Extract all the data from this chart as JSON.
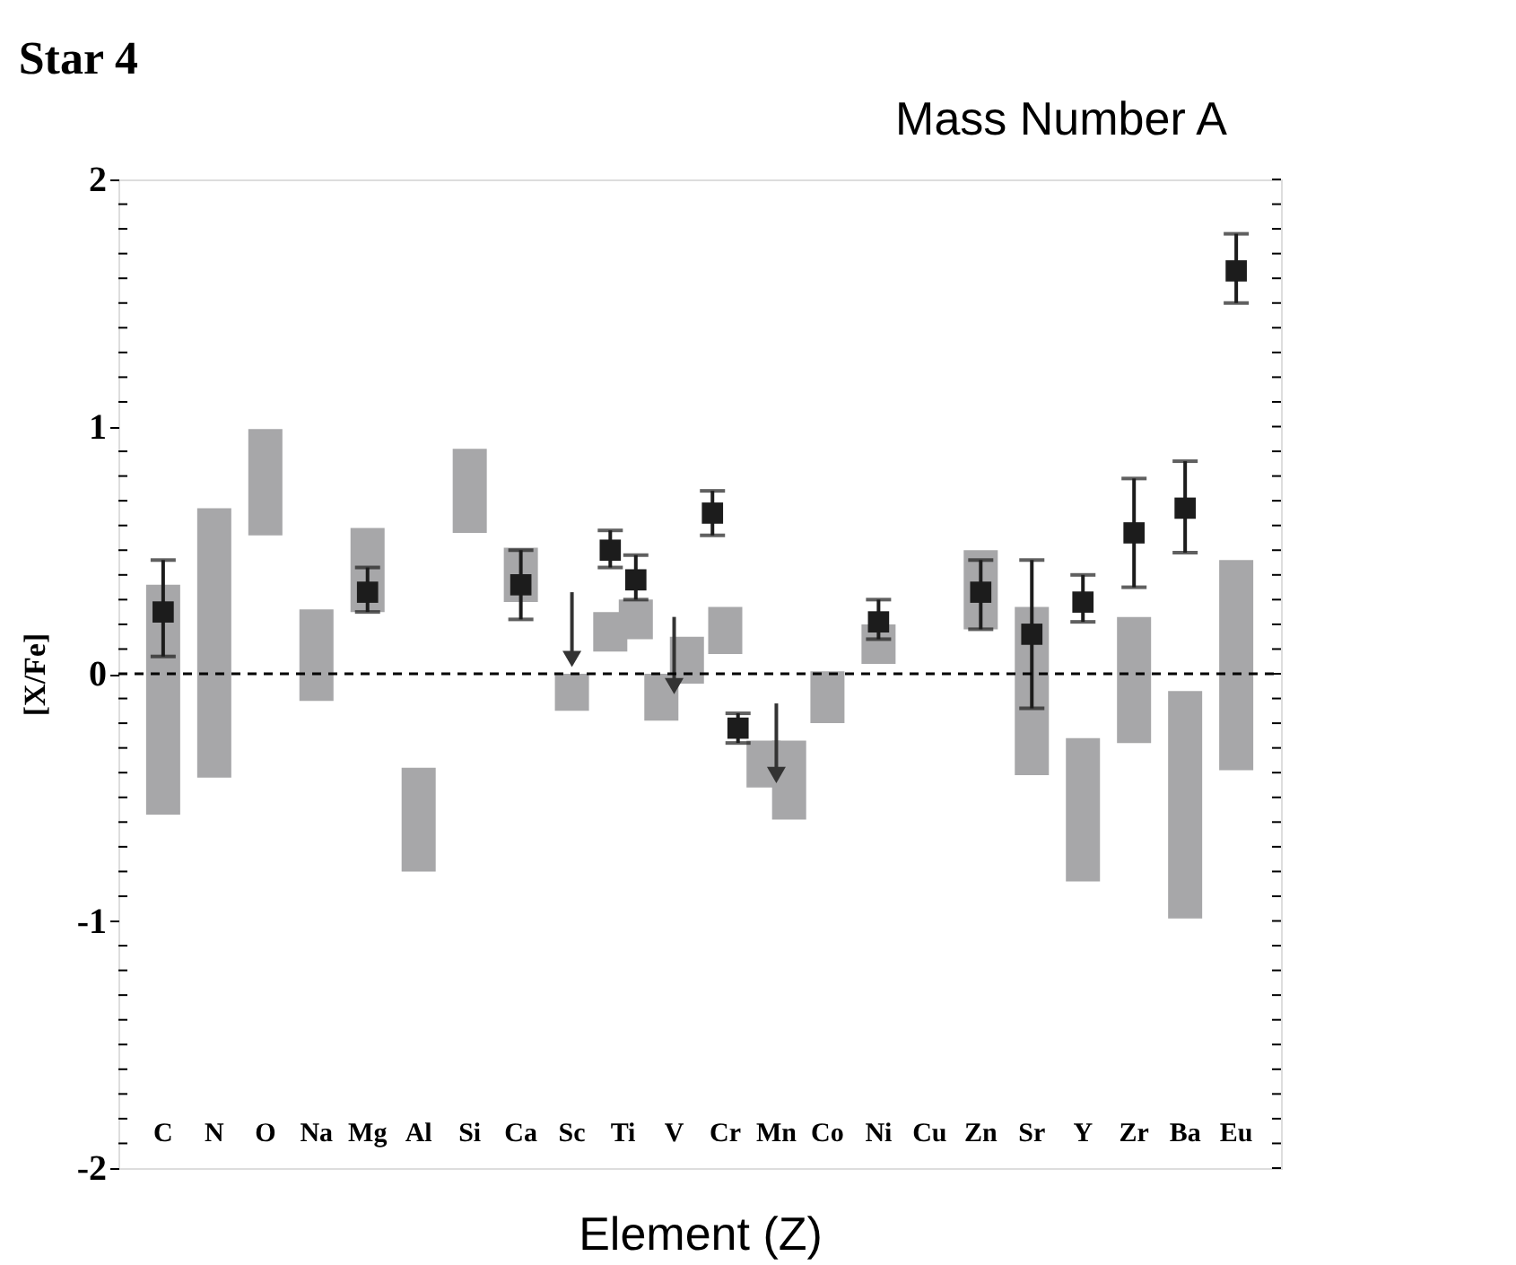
{
  "chart_data": {
    "type": "bar",
    "title": "Star 4",
    "xlabel": "Element (Z)",
    "ylabel": "[X/Fe]",
    "annotations": [
      "Mass Number A"
    ],
    "categories": [
      "C",
      "N",
      "O",
      "Na",
      "Mg",
      "Al",
      "Si",
      "Ca",
      "Sc",
      "Ti",
      "V",
      "Cr",
      "Mn",
      "Co",
      "Ni",
      "Cu",
      "Zn",
      "Sr",
      "Y",
      "Zr",
      "Ba",
      "Eu"
    ],
    "series": [
      {
        "color": "#a7a7a9",
        "x": [
          "C",
          "N",
          "O",
          "Na",
          "Mg",
          "Al",
          "Si",
          "Ca",
          "Sc",
          "Ti",
          "Ti",
          "V",
          "V",
          "Cr",
          "Mn",
          "Mn",
          "Co",
          "Ni",
          "Zn",
          "Sr",
          "Y",
          "Zr",
          "Ba",
          "Eu"
        ],
        "base": [
          -0.57,
          -0.42,
          0.56,
          -0.11,
          0.25,
          -0.8,
          0.57,
          0.29,
          -0.15,
          0.09,
          0.14,
          -0.19,
          -0.04,
          0.08,
          -0.46,
          -0.59,
          -0.2,
          0.04,
          0.18,
          -0.41,
          -0.84,
          -0.28,
          -0.99,
          -0.39
        ],
        "values": [
          0.93,
          1.09,
          0.43,
          0.37,
          0.34,
          0.42,
          0.34,
          0.22,
          0.15,
          0.16,
          0.16,
          0.19,
          0.19,
          0.19,
          0.19,
          0.32,
          0.21,
          0.16,
          0.32,
          0.68,
          0.58,
          0.51,
          0.92,
          0.85
        ]
      },
      {
        "type": "scatter",
        "marker": "square",
        "color": "#1c1c1c",
        "x": [
          "C",
          "Mg",
          "Ca",
          "Ti",
          "Ti",
          "Cr",
          "Cr",
          "Ni",
          "Zn",
          "Sr",
          "Y",
          "Zr",
          "Ba",
          "Eu"
        ],
        "values": [
          0.25,
          0.33,
          0.36,
          0.5,
          0.38,
          0.65,
          -0.22,
          0.21,
          0.33,
          0.16,
          0.29,
          0.57,
          0.67,
          1.63
        ],
        "errors": [
          [
            0.07,
            0.46
          ],
          [
            0.25,
            0.43
          ],
          [
            0.22,
            0.5
          ],
          [
            0.43,
            0.58
          ],
          [
            0.3,
            0.48
          ],
          [
            0.56,
            0.74
          ],
          [
            -0.28,
            -0.16
          ],
          [
            0.14,
            0.3
          ],
          [
            0.18,
            0.46
          ],
          [
            -0.14,
            0.46
          ],
          [
            0.21,
            0.4
          ],
          [
            0.35,
            0.79
          ],
          [
            0.49,
            0.86
          ],
          [
            1.5,
            1.78
          ]
        ]
      },
      {
        "type": "scatter",
        "marker": "triangle",
        "color": "#333333",
        "x": [
          "Sc",
          "V",
          "Mn"
        ],
        "values": [
          0.06,
          -0.05,
          -0.41
        ],
        "errors": [
          [
            0.06,
            0.33
          ],
          [
            -0.05,
            0.23
          ],
          [
            -0.41,
            -0.12
          ]
        ]
      }
    ],
    "ref_lines": [
      {
        "axis": "y",
        "value": 0,
        "line_style": "dashed",
        "color": "#000000"
      }
    ],
    "ylim": [
      -2,
      2
    ],
    "yticks": [
      -2,
      {
        "value": -1.9,
        "label": null
      },
      {
        "value": -1.8,
        "label": null
      },
      {
        "value": -1.7,
        "label": null
      },
      {
        "value": -1.6,
        "label": null
      },
      {
        "value": -1.5,
        "label": null
      },
      {
        "value": -1.4,
        "label": null
      },
      {
        "value": -1.3,
        "label": null
      },
      {
        "value": -1.2,
        "label": null
      },
      {
        "value": -1.1,
        "label": null
      },
      -1,
      {
        "value": -0.9,
        "label": null
      },
      {
        "value": -0.8,
        "label": null
      },
      {
        "value": -0.7,
        "label": null
      },
      {
        "value": -0.6,
        "label": null
      },
      {
        "value": -0.5,
        "label": null
      },
      {
        "value": -0.4,
        "label": null
      },
      {
        "value": -0.3,
        "label": null
      },
      {
        "value": -0.2,
        "label": null
      },
      {
        "value": -0.1,
        "label": null
      },
      0,
      {
        "value": 0.1,
        "label": null
      },
      {
        "value": 0.2,
        "label": null
      },
      {
        "value": 0.3,
        "label": null
      },
      {
        "value": 0.4,
        "label": null
      },
      {
        "value": 0.5,
        "label": null
      },
      {
        "value": 0.6,
        "label": null
      },
      {
        "value": 0.7,
        "label": null
      },
      {
        "value": 0.8,
        "label": null
      },
      {
        "value": 0.9,
        "label": null
      },
      1,
      {
        "value": 1.1,
        "label": null
      },
      {
        "value": 1.2,
        "label": null
      },
      {
        "value": 1.3,
        "label": null
      },
      {
        "value": 1.4,
        "label": null
      },
      {
        "value": 1.5,
        "label": null
      },
      {
        "value": 1.6,
        "label": null
      },
      {
        "value": 1.7,
        "label": null
      },
      {
        "value": 1.8,
        "label": null
      },
      {
        "value": 1.9,
        "label": null
      },
      2
    ],
    "grid": false
  }
}
